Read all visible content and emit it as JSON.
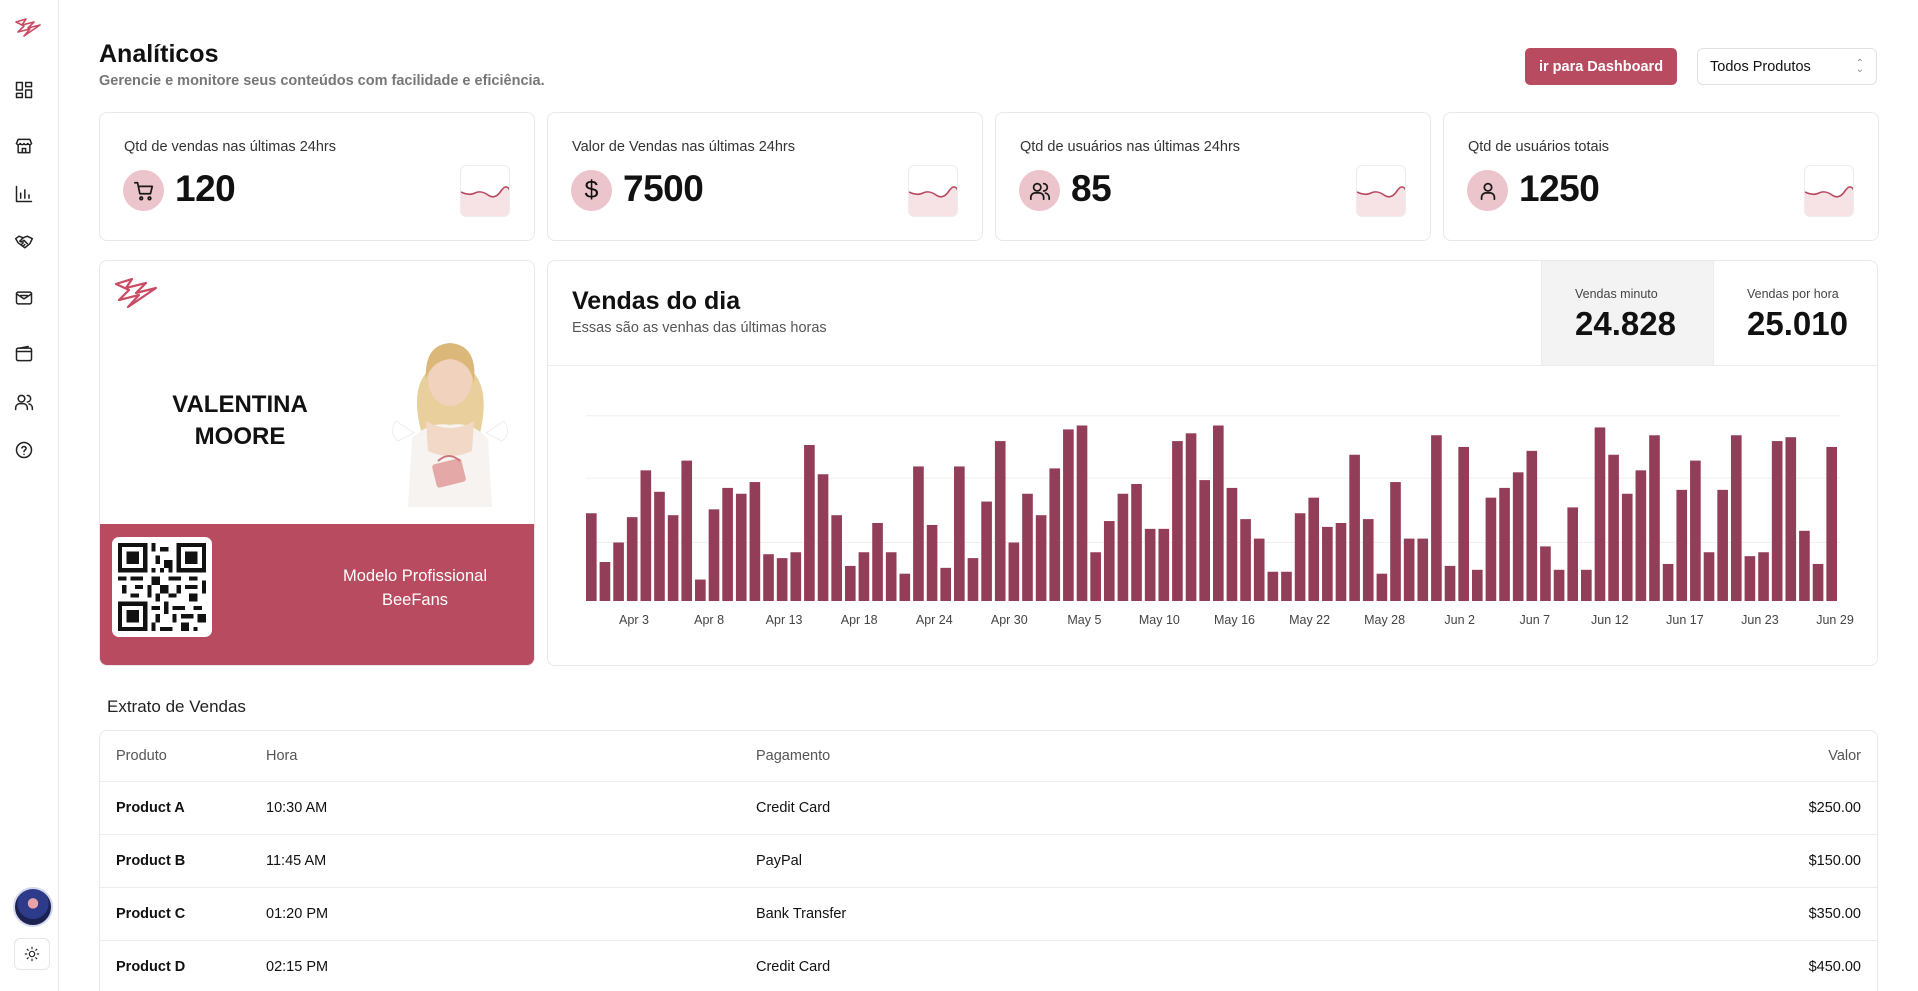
{
  "sidebar": {
    "items": [
      {
        "name": "dashboard-icon"
      },
      {
        "name": "store-icon"
      },
      {
        "name": "bar-chart-icon"
      },
      {
        "name": "handshake-icon"
      },
      {
        "name": "mail-icon"
      },
      {
        "name": "wallet-icon"
      },
      {
        "name": "users-icon"
      },
      {
        "name": "help-icon"
      }
    ]
  },
  "header": {
    "title": "Analíticos",
    "subtitle": "Gerencie e monitore seus conteúdos com facilidade e eficiência.",
    "dashboard_button": "ir para Dashboard",
    "product_filter": "Todos Produtos"
  },
  "kpis": [
    {
      "label": "Qtd de vendas nas últimas 24hrs",
      "value": "120",
      "icon": "cart-icon"
    },
    {
      "label": "Valor de Vendas nas últimas 24hrs",
      "value": "7500",
      "icon": "dollar-icon"
    },
    {
      "label": "Qtd de usuários nas últimas 24hrs",
      "value": "85",
      "icon": "users-icon"
    },
    {
      "label": "Qtd de usuários totais",
      "value": "1250",
      "icon": "user-icon"
    }
  ],
  "profile": {
    "name": "VALENTINA MOORE",
    "role": "Modelo Profissional BeeFans"
  },
  "sales_chart": {
    "title": "Vendas do dia",
    "subtitle": "Essas são as venhas das últimas horas",
    "stat_minute_label": "Vendas minuto",
    "stat_minute_value": "24.828",
    "stat_hour_label": "Vendas por hora",
    "stat_hour_value": "25.010"
  },
  "chart_data": {
    "type": "bar",
    "x_tick_labels": [
      "Apr 3",
      "Apr 8",
      "Apr 13",
      "Apr 18",
      "Apr 24",
      "Apr 30",
      "May 5",
      "May 10",
      "May 16",
      "May 22",
      "May 28",
      "Jun 2",
      "Jun 7",
      "Jun 12",
      "Jun 17",
      "Jun 23",
      "Jun 29"
    ],
    "values": [
      45,
      20,
      30,
      43,
      67,
      56,
      44,
      72,
      11,
      47,
      58,
      55,
      61,
      24,
      22,
      25,
      80,
      65,
      44,
      18,
      25,
      40,
      25,
      14,
      69,
      39,
      17,
      69,
      22,
      51,
      82,
      30,
      55,
      44,
      68,
      88,
      90,
      25,
      41,
      55,
      60,
      37,
      37,
      82,
      86,
      62,
      90,
      58,
      42,
      32,
      15,
      15,
      45,
      53,
      38,
      40,
      75,
      42,
      14,
      61,
      32,
      32,
      85,
      18,
      79,
      16,
      53,
      58,
      66,
      77,
      28,
      16,
      48,
      16,
      89,
      75,
      55,
      67,
      85,
      19,
      57,
      72,
      25,
      57,
      85,
      23,
      25,
      82,
      84,
      36,
      19,
      79
    ],
    "color": "#933e58",
    "grid": true
  },
  "table": {
    "title": "Extrato de Vendas",
    "columns": [
      "Produto",
      "Hora",
      "Pagamento",
      "Valor"
    ],
    "rows": [
      [
        "Product A",
        "10:30 AM",
        "Credit Card",
        "$250.00"
      ],
      [
        "Product B",
        "11:45 AM",
        "PayPal",
        "$150.00"
      ],
      [
        "Product C",
        "01:20 PM",
        "Bank Transfer",
        "$350.00"
      ],
      [
        "Product D",
        "02:15 PM",
        "Credit Card",
        "$450.00"
      ]
    ]
  },
  "colors": {
    "accent": "#b84b5f",
    "bar": "#933e58",
    "icon_bg": "#ebc5cb"
  }
}
